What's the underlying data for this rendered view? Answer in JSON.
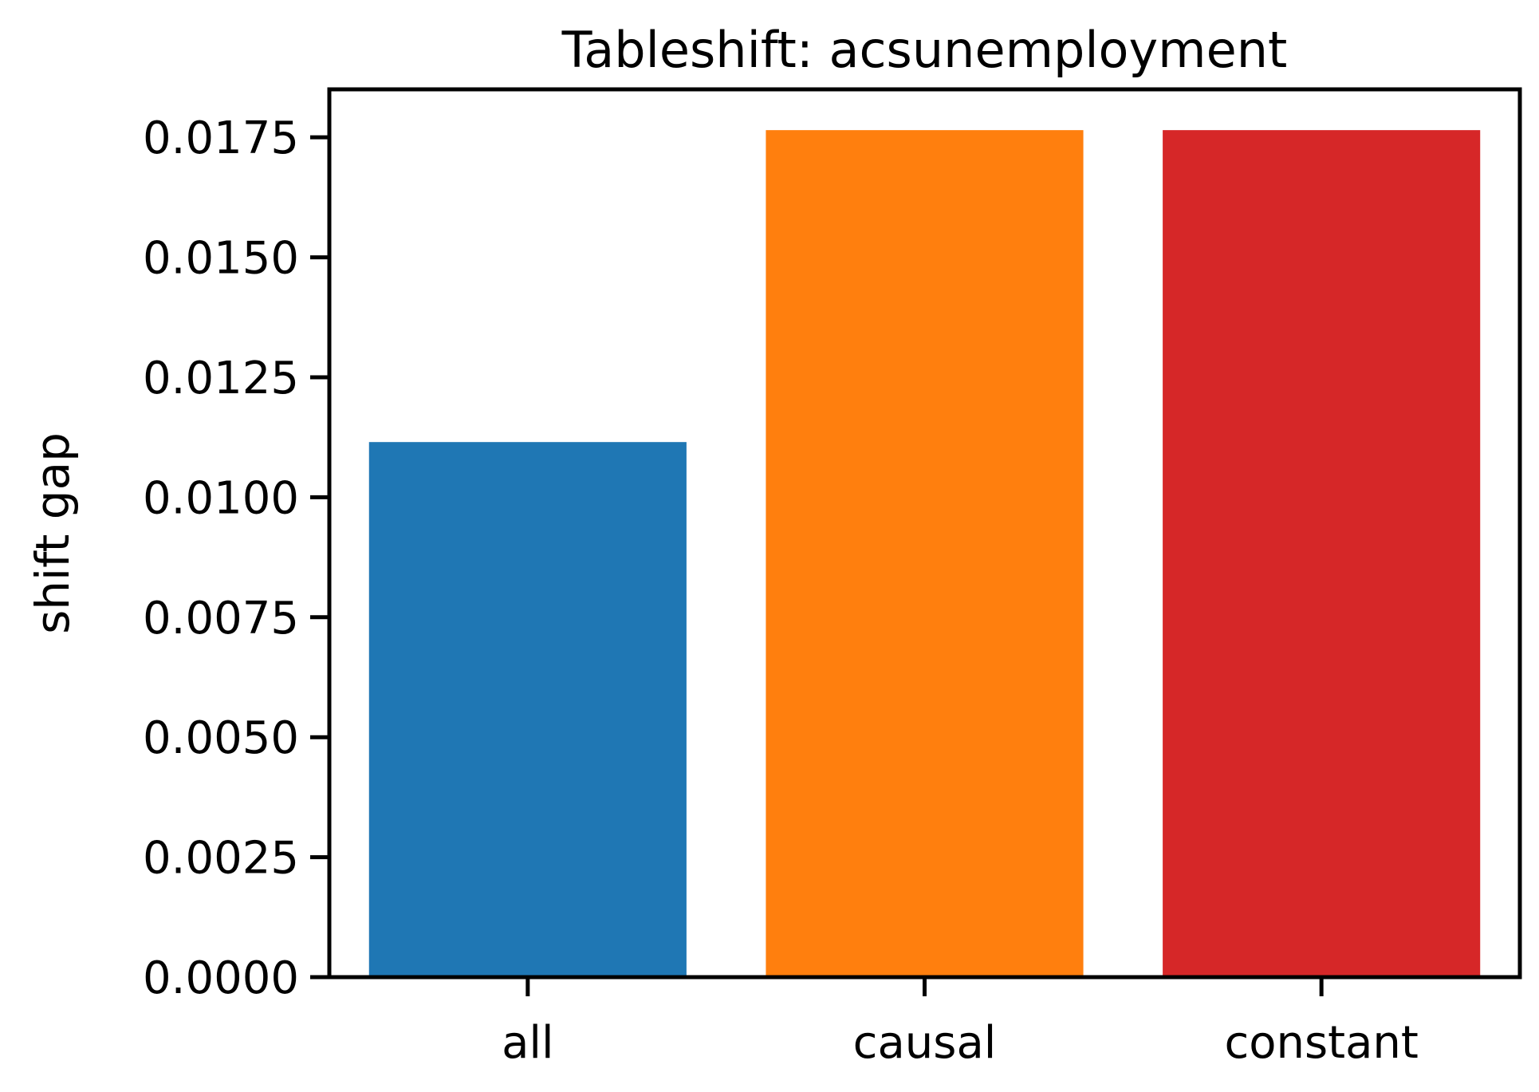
{
  "chart_data": {
    "type": "bar",
    "title": "Tableshift: acsunemployment",
    "xlabel": "",
    "ylabel": "shift gap",
    "categories": [
      "all",
      "causal",
      "constant"
    ],
    "values": [
      0.01115,
      0.01765,
      0.01765
    ],
    "colors": [
      "#1f77b4",
      "#ff7f0e",
      "#d62728"
    ],
    "ylim": [
      0,
      0.0185
    ],
    "yticks": [
      0,
      0.0025,
      0.005,
      0.0075,
      0.01,
      0.0125,
      0.015,
      0.0175
    ],
    "ytick_labels": [
      "0.0000",
      "0.0025",
      "0.0050",
      "0.0075",
      "0.0100",
      "0.0125",
      "0.0150",
      "0.0175"
    ],
    "grid": false,
    "legend": false
  }
}
